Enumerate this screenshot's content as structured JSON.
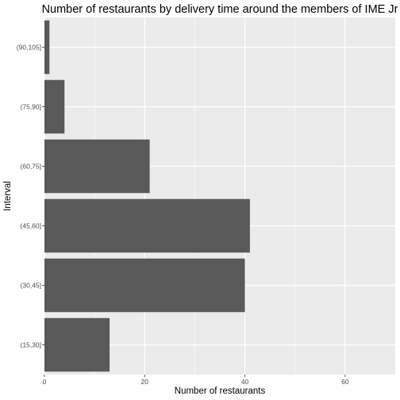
{
  "chart_data": {
    "type": "bar",
    "orientation": "horizontal",
    "title": "Number of restaurants by delivery time around the members of IME Jr",
    "xlabel": "Number of restaurants",
    "ylabel": "Interval",
    "categories": [
      "(15,30]",
      "(30,45]",
      "(45,60]",
      "(60,75]",
      "(75,90]",
      "(90,105]"
    ],
    "values": [
      13,
      40,
      41,
      21,
      4,
      1
    ],
    "xlim": [
      0,
      70
    ],
    "xticks": [
      0,
      20,
      40,
      60
    ],
    "grid": true,
    "legend": "none",
    "colors": {
      "bar": "#595959",
      "panel": "#ebebeb",
      "grid_major": "#ffffff",
      "tick_text": "#4d4d4d"
    }
  }
}
